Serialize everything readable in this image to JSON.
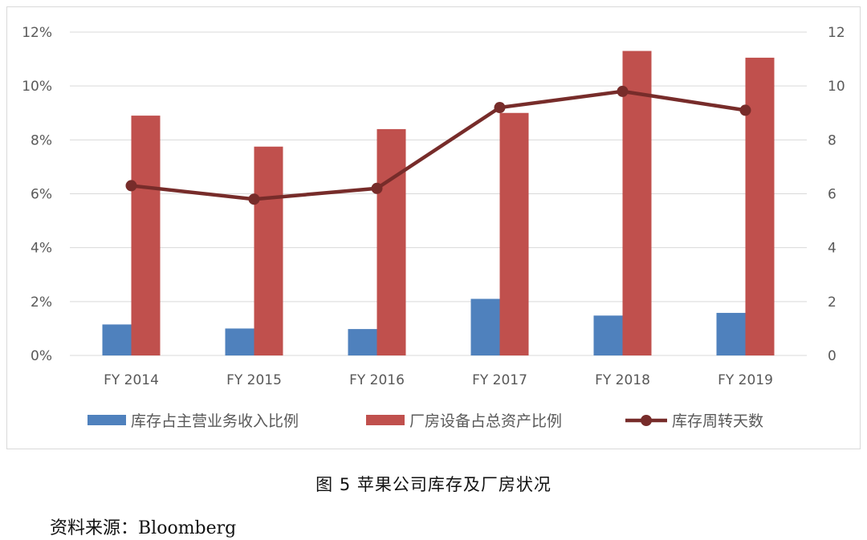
{
  "chart_data": {
    "type": "bar",
    "categories": [
      "FY 2014",
      "FY 2015",
      "FY 2016",
      "FY 2017",
      "FY 2018",
      "FY 2019"
    ],
    "series": [
      {
        "name": "库存占主营业务收入比例",
        "axis": "left",
        "kind": "bar",
        "color": "#4f81bd",
        "values": [
          1.15,
          1.0,
          0.98,
          2.1,
          1.48,
          1.58
        ]
      },
      {
        "name": "厂房设备占总资产比例",
        "axis": "left",
        "kind": "bar",
        "color": "#c0504d",
        "values": [
          8.9,
          7.75,
          8.4,
          9.0,
          11.3,
          11.05
        ]
      },
      {
        "name": "库存周转天数",
        "axis": "right",
        "kind": "line",
        "color": "#772c2a",
        "values": [
          6.3,
          5.8,
          6.2,
          9.2,
          9.8,
          9.1
        ]
      }
    ],
    "y_left": {
      "ylim": [
        0,
        12
      ],
      "ticks": [
        "0%",
        "2%",
        "4%",
        "6%",
        "8%",
        "10%",
        "12%"
      ],
      "tick_values": [
        0,
        2,
        4,
        6,
        8,
        10,
        12
      ]
    },
    "y_right": {
      "ylim": [
        0,
        12
      ],
      "ticks": [
        "0",
        "2",
        "4",
        "6",
        "8",
        "10",
        "12"
      ],
      "tick_values": [
        0,
        2,
        4,
        6,
        8,
        10,
        12
      ]
    },
    "grid": true,
    "legend": "bottom"
  },
  "caption": "图 5 苹果公司库存及厂房状况",
  "source": "资料来源：Bloomberg"
}
